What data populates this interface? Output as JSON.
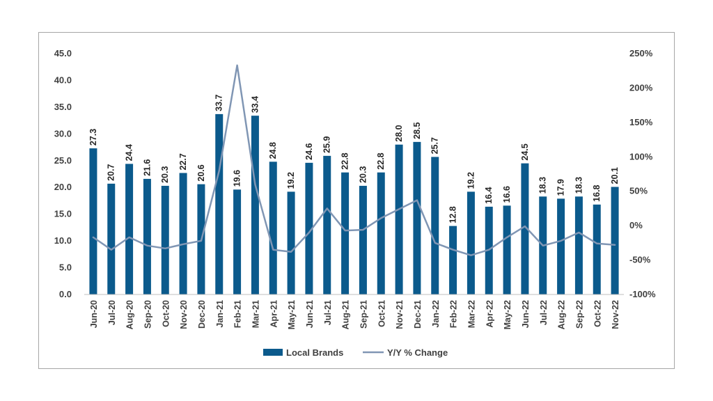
{
  "chart_data": {
    "type": "bar",
    "title": "",
    "categories": [
      "Jun-20",
      "Jul-20",
      "Aug-20",
      "Sep-20",
      "Oct-20",
      "Nov-20",
      "Dec-20",
      "Jan-21",
      "Feb-21",
      "Mar-21",
      "Apr-21",
      "May-21",
      "Jun-21",
      "Jul-21",
      "Aug-21",
      "Sep-21",
      "Oct-21",
      "Nov-21",
      "Dec-21",
      "Jan-22",
      "Feb-22",
      "Mar-22",
      "Apr-22",
      "May-22",
      "Jun-22",
      "Jul-22",
      "Aug-22",
      "Sep-22",
      "Oct-22",
      "Nov-22"
    ],
    "series": [
      {
        "name": "Local Brands",
        "type": "bar",
        "axis": "left",
        "color": "#0b5a8c",
        "values": [
          27.3,
          20.7,
          24.4,
          21.6,
          20.3,
          22.7,
          20.6,
          33.7,
          19.6,
          33.4,
          24.8,
          19.2,
          24.6,
          25.9,
          22.8,
          20.3,
          22.8,
          28.0,
          28.5,
          25.7,
          12.8,
          19.2,
          16.4,
          16.6,
          24.5,
          18.3,
          17.9,
          18.3,
          16.8,
          20.1
        ],
        "labels": [
          "27.3",
          "20.7",
          "24.4",
          "21.6",
          "20.3",
          "22.7",
          "20.6",
          "33.7",
          "19.6",
          "33.4",
          "24.8",
          "19.2",
          "24.6",
          "25.9",
          "22.8",
          "20.3",
          "22.8",
          "28.0",
          "28.5",
          "25.7",
          "12.8",
          "19.2",
          "16.4",
          "16.6",
          "24.5",
          "18.3",
          "17.9",
          "18.3",
          "16.8",
          "20.1"
        ]
      },
      {
        "name": "Y/Y % Change",
        "type": "line",
        "axis": "right",
        "color": "#8096b4",
        "values": [
          -17,
          -35,
          -17,
          -29,
          -33,
          -27,
          -22,
          80,
          233,
          60,
          -35,
          -38,
          -10,
          25,
          -7,
          -6,
          11,
          24,
          37,
          -25,
          -35,
          -43,
          -35,
          -17,
          -1,
          -29,
          -22,
          -10,
          -26,
          -28
        ]
      }
    ],
    "yaxis_left": {
      "min": 0,
      "max": 45,
      "step": 5,
      "tick_labels": [
        "0.0",
        "5.0",
        "10.0",
        "15.0",
        "20.0",
        "25.0",
        "30.0",
        "35.0",
        "40.0",
        "45.0"
      ]
    },
    "yaxis_right": {
      "min": -100,
      "max": 250,
      "step": 50,
      "tick_labels": [
        "-100%",
        "-50%",
        "0%",
        "50%",
        "100%",
        "150%",
        "200%",
        "250%"
      ]
    },
    "xlabel": "",
    "ylabel": "",
    "grid": false,
    "legend": {
      "position": "bottom-center",
      "entries": [
        "Local Brands",
        "Y/Y % Change"
      ]
    }
  }
}
